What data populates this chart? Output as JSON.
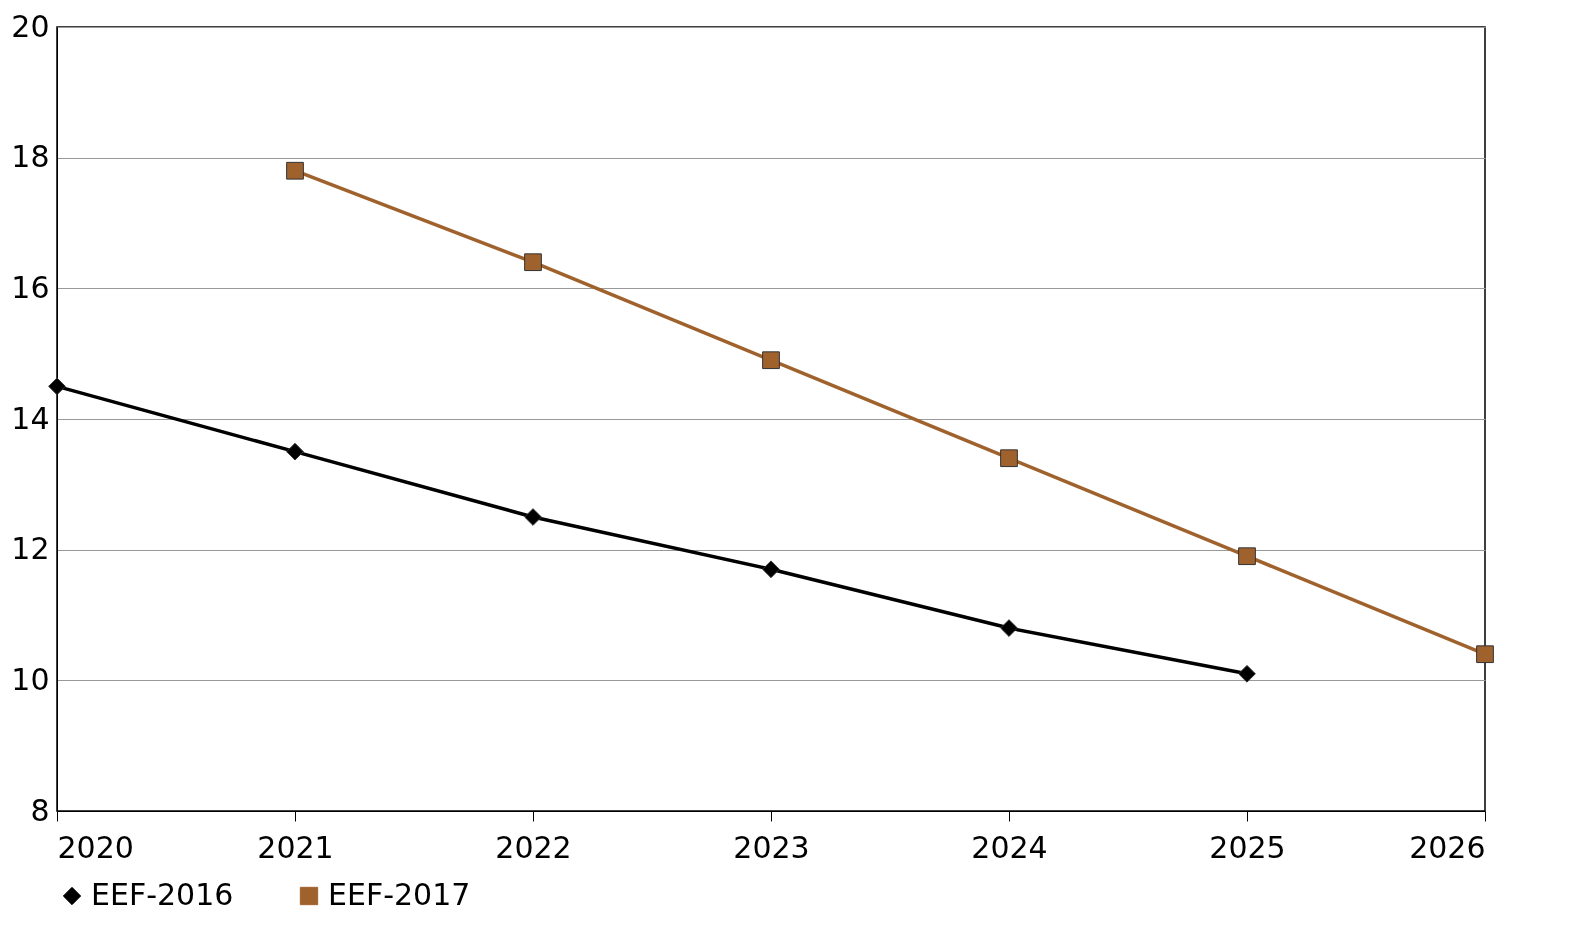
{
  "chart_data": {
    "type": "line",
    "x": [
      2020,
      2021,
      2022,
      2023,
      2024,
      2025,
      2026
    ],
    "xlim": [
      2020,
      2026
    ],
    "xticks": [
      2020,
      2021,
      2022,
      2023,
      2024,
      2025,
      2026
    ],
    "ylim": [
      8,
      20
    ],
    "yticks": [
      8,
      10,
      12,
      14,
      16,
      18,
      20
    ],
    "grid": "y",
    "legend": "bottom",
    "line_style": "solid",
    "series": [
      {
        "name": "EEF-2016",
        "color": "#000000",
        "marker": "diamond",
        "values": [
          14.5,
          13.5,
          12.5,
          11.7,
          10.8,
          10.1,
          null
        ]
      },
      {
        "name": "EEF-2017",
        "color": "#a0622d",
        "marker": "square",
        "values": [
          null,
          17.8,
          16.4,
          14.9,
          13.4,
          11.9,
          10.4
        ]
      }
    ]
  }
}
